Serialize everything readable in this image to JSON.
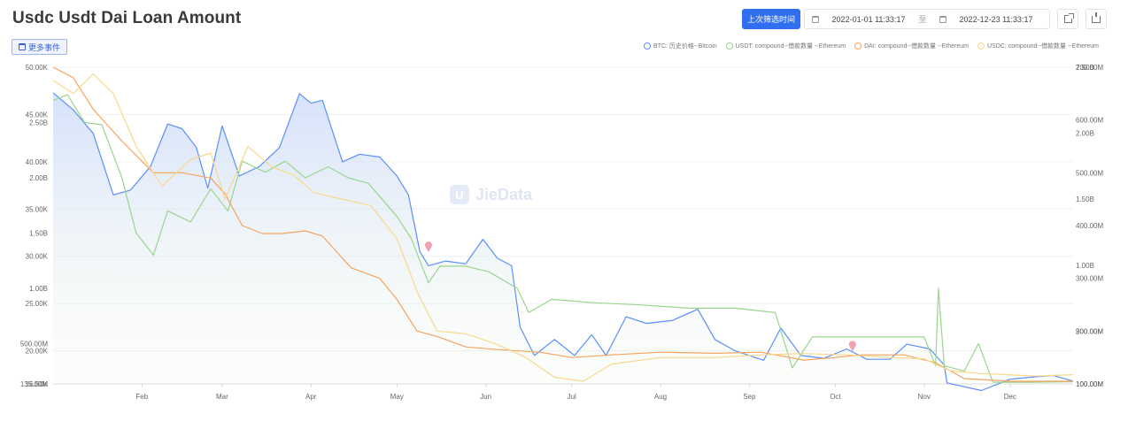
{
  "page": {
    "title": "Usdc Usdt Dai Loan Amount",
    "more_events": "更多事件",
    "filter_button": "上次筛选时间",
    "date_start": "2022-01-01 11:33:17",
    "date_sep": "至",
    "date_end": "2022-12-23 11:33:17",
    "watermark": "JieData"
  },
  "chart_data": {
    "type": "line",
    "x_range": [
      "2022-01-01",
      "2022-12-23"
    ],
    "x_ticks": [
      {
        "date": "2022-02-01",
        "label": "Feb"
      },
      {
        "date": "2022-03-01",
        "label": "Mar"
      },
      {
        "date": "2022-04-01",
        "label": "Apr"
      },
      {
        "date": "2022-05-01",
        "label": "May"
      },
      {
        "date": "2022-06-01",
        "label": "Jun"
      },
      {
        "date": "2022-07-01",
        "label": "Jul"
      },
      {
        "date": "2022-08-01",
        "label": "Aug"
      },
      {
        "date": "2022-09-01",
        "label": "Sep"
      },
      {
        "date": "2022-10-01",
        "label": "Oct"
      },
      {
        "date": "2022-11-01",
        "label": "Nov"
      },
      {
        "date": "2022-12-01",
        "label": "Dec"
      }
    ],
    "axes": [
      {
        "id": "btc",
        "side": "left",
        "min": 16500,
        "max": 50000,
        "ticks": [
          {
            "v": 50000,
            "label": "50.00K"
          },
          {
            "v": 45000,
            "label": "45.00K"
          },
          {
            "v": 40000,
            "label": "40.00K"
          },
          {
            "v": 35000,
            "label": "35.00K"
          },
          {
            "v": 30000,
            "label": "30.00K"
          },
          {
            "v": 25000,
            "label": "25.00K"
          },
          {
            "v": 20000,
            "label": "20.00K"
          },
          {
            "v": 16500,
            "label": "16.50K"
          }
        ]
      },
      {
        "id": "usdt",
        "side": "left",
        "min": 135000000,
        "max": 3000000000,
        "ticks": [
          {
            "v": 2500000000,
            "label": "2.50B"
          },
          {
            "v": 2000000000,
            "label": "2.00B"
          },
          {
            "v": 1500000000,
            "label": "1.50B"
          },
          {
            "v": 1000000000,
            "label": "1.00B"
          },
          {
            "v": 500000000,
            "label": "500.00M"
          },
          {
            "v": 135000000,
            "label": "135.00M"
          }
        ]
      },
      {
        "id": "dai",
        "side": "right",
        "min": 100000000,
        "max": 700000000,
        "ticks": [
          {
            "v": 700000000,
            "label": "700.00M"
          },
          {
            "v": 600000000,
            "label": "600.00M"
          },
          {
            "v": 500000000,
            "label": "500.00M"
          },
          {
            "v": 400000000,
            "label": "400.00M"
          },
          {
            "v": 300000000,
            "label": "300.00M"
          },
          {
            "v": 200000000,
            "label": "200.00M"
          },
          {
            "v": 100000000,
            "label": "100.00M"
          }
        ]
      },
      {
        "id": "usdc",
        "side": "right",
        "min": 100000000,
        "max": 2500000000,
        "ticks": [
          {
            "v": 2500000000,
            "label": "2.50B"
          },
          {
            "v": 2000000000,
            "label": "2.00B"
          },
          {
            "v": 1500000000,
            "label": "1.50B"
          },
          {
            "v": 1000000000,
            "label": "1.00B"
          },
          {
            "v": 500000000,
            "label": "500.00M"
          },
          {
            "v": 100000000,
            "label": "100.00M"
          }
        ]
      }
    ],
    "series": [
      {
        "name": "BTC: 历史价格--Bitcoin",
        "axis": "btc",
        "color": "#5b8ff9",
        "area": true,
        "points": [
          [
            "2022-01-01",
            47300
          ],
          [
            "2022-01-08",
            45500
          ],
          [
            "2022-01-15",
            43000
          ],
          [
            "2022-01-22",
            36500
          ],
          [
            "2022-01-28",
            37000
          ],
          [
            "2022-02-04",
            39500
          ],
          [
            "2022-02-10",
            44000
          ],
          [
            "2022-02-15",
            43500
          ],
          [
            "2022-02-20",
            41500
          ],
          [
            "2022-02-24",
            37200
          ],
          [
            "2022-03-01",
            43800
          ],
          [
            "2022-03-07",
            38500
          ],
          [
            "2022-03-14",
            39500
          ],
          [
            "2022-03-21",
            41500
          ],
          [
            "2022-03-28",
            47200
          ],
          [
            "2022-04-01",
            46200
          ],
          [
            "2022-04-05",
            46500
          ],
          [
            "2022-04-12",
            40000
          ],
          [
            "2022-04-18",
            40800
          ],
          [
            "2022-04-25",
            40500
          ],
          [
            "2022-05-01",
            38500
          ],
          [
            "2022-05-05",
            36500
          ],
          [
            "2022-05-09",
            30500
          ],
          [
            "2022-05-12",
            29000
          ],
          [
            "2022-05-18",
            29500
          ],
          [
            "2022-05-25",
            29200
          ],
          [
            "2022-05-31",
            31800
          ],
          [
            "2022-06-05",
            29800
          ],
          [
            "2022-06-10",
            29000
          ],
          [
            "2022-06-13",
            22500
          ],
          [
            "2022-06-18",
            19500
          ],
          [
            "2022-06-25",
            21200
          ],
          [
            "2022-07-02",
            19500
          ],
          [
            "2022-07-08",
            21700
          ],
          [
            "2022-07-13",
            19500
          ],
          [
            "2022-07-20",
            23600
          ],
          [
            "2022-07-27",
            22900
          ],
          [
            "2022-08-05",
            23200
          ],
          [
            "2022-08-14",
            24400
          ],
          [
            "2022-08-20",
            21200
          ],
          [
            "2022-08-27",
            20000
          ],
          [
            "2022-09-06",
            19000
          ],
          [
            "2022-09-12",
            22400
          ],
          [
            "2022-09-19",
            19500
          ],
          [
            "2022-09-27",
            19200
          ],
          [
            "2022-10-05",
            20200
          ],
          [
            "2022-10-12",
            19100
          ],
          [
            "2022-10-20",
            19100
          ],
          [
            "2022-10-26",
            20700
          ],
          [
            "2022-11-03",
            20200
          ],
          [
            "2022-11-08",
            18500
          ],
          [
            "2022-11-09",
            16600
          ],
          [
            "2022-11-21",
            15800
          ],
          [
            "2022-12-01",
            17000
          ],
          [
            "2022-12-08",
            17200
          ],
          [
            "2022-12-16",
            17400
          ],
          [
            "2022-12-23",
            16800
          ]
        ]
      },
      {
        "name": "USDT: compound--借款数量 --Ethereum",
        "axis": "usdt",
        "color": "#9ad58d",
        "points": [
          [
            "2022-01-01",
            2700000000
          ],
          [
            "2022-01-06",
            2750000000
          ],
          [
            "2022-01-12",
            2500000000
          ],
          [
            "2022-01-18",
            2480000000
          ],
          [
            "2022-01-25",
            2000000000
          ],
          [
            "2022-01-30",
            1500000000
          ],
          [
            "2022-02-05",
            1300000000
          ],
          [
            "2022-02-10",
            1700000000
          ],
          [
            "2022-02-18",
            1600000000
          ],
          [
            "2022-02-25",
            1900000000
          ],
          [
            "2022-03-03",
            1700000000
          ],
          [
            "2022-03-08",
            2150000000
          ],
          [
            "2022-03-16",
            2050000000
          ],
          [
            "2022-03-23",
            2150000000
          ],
          [
            "2022-03-30",
            2000000000
          ],
          [
            "2022-04-07",
            2100000000
          ],
          [
            "2022-04-14",
            2000000000
          ],
          [
            "2022-04-21",
            1950000000
          ],
          [
            "2022-05-01",
            1650000000
          ],
          [
            "2022-05-06",
            1450000000
          ],
          [
            "2022-05-12",
            1050000000
          ],
          [
            "2022-05-16",
            1200000000
          ],
          [
            "2022-05-25",
            1200000000
          ],
          [
            "2022-06-02",
            1150000000
          ],
          [
            "2022-06-12",
            1000000000
          ],
          [
            "2022-06-16",
            780000000
          ],
          [
            "2022-06-24",
            900000000
          ],
          [
            "2022-07-08",
            870000000
          ],
          [
            "2022-07-25",
            850000000
          ],
          [
            "2022-08-11",
            820000000
          ],
          [
            "2022-08-27",
            820000000
          ],
          [
            "2022-09-10",
            780000000
          ],
          [
            "2022-09-16",
            280000000
          ],
          [
            "2022-09-23",
            560000000
          ],
          [
            "2022-10-05",
            560000000
          ],
          [
            "2022-10-20",
            560000000
          ],
          [
            "2022-11-01",
            560000000
          ],
          [
            "2022-11-05",
            300000000
          ],
          [
            "2022-11-06",
            1000000000
          ],
          [
            "2022-11-08",
            300000000
          ],
          [
            "2022-11-15",
            250000000
          ],
          [
            "2022-11-20",
            500000000
          ],
          [
            "2022-11-25",
            150000000
          ],
          [
            "2022-12-08",
            150000000
          ],
          [
            "2022-12-23",
            155000000
          ]
        ]
      },
      {
        "name": "DAI: compound--借款数量 --Ethereum",
        "axis": "dai",
        "color": "#f5a35f",
        "points": [
          [
            "2022-01-01",
            700000000
          ],
          [
            "2022-01-08",
            680000000
          ],
          [
            "2022-01-15",
            620000000
          ],
          [
            "2022-01-25",
            560000000
          ],
          [
            "2022-02-05",
            500000000
          ],
          [
            "2022-02-15",
            500000000
          ],
          [
            "2022-02-25",
            490000000
          ],
          [
            "2022-03-02",
            460000000
          ],
          [
            "2022-03-08",
            400000000
          ],
          [
            "2022-03-15",
            385000000
          ],
          [
            "2022-03-22",
            385000000
          ],
          [
            "2022-03-30",
            390000000
          ],
          [
            "2022-04-05",
            380000000
          ],
          [
            "2022-04-15",
            320000000
          ],
          [
            "2022-04-25",
            300000000
          ],
          [
            "2022-05-01",
            260000000
          ],
          [
            "2022-05-08",
            200000000
          ],
          [
            "2022-05-15",
            190000000
          ],
          [
            "2022-05-25",
            170000000
          ],
          [
            "2022-06-05",
            165000000
          ],
          [
            "2022-06-20",
            160000000
          ],
          [
            "2022-07-01",
            150000000
          ],
          [
            "2022-07-15",
            155000000
          ],
          [
            "2022-08-01",
            160000000
          ],
          [
            "2022-08-20",
            158000000
          ],
          [
            "2022-09-05",
            160000000
          ],
          [
            "2022-09-20",
            145000000
          ],
          [
            "2022-10-01",
            150000000
          ],
          [
            "2022-10-10",
            155000000
          ],
          [
            "2022-10-25",
            155000000
          ],
          [
            "2022-11-05",
            140000000
          ],
          [
            "2022-11-15",
            110000000
          ],
          [
            "2022-12-01",
            105000000
          ],
          [
            "2022-12-23",
            105000000
          ]
        ]
      },
      {
        "name": "USDC: compound--借款数量 --Ethereum",
        "axis": "usdc",
        "color": "#f8d98b",
        "points": [
          [
            "2022-01-01",
            2400000000
          ],
          [
            "2022-01-08",
            2300000000
          ],
          [
            "2022-01-15",
            2450000000
          ],
          [
            "2022-01-22",
            2300000000
          ],
          [
            "2022-01-30",
            1900000000
          ],
          [
            "2022-02-08",
            1600000000
          ],
          [
            "2022-02-18",
            1800000000
          ],
          [
            "2022-02-25",
            1850000000
          ],
          [
            "2022-03-02",
            1500000000
          ],
          [
            "2022-03-10",
            1900000000
          ],
          [
            "2022-03-18",
            1750000000
          ],
          [
            "2022-03-26",
            1680000000
          ],
          [
            "2022-04-02",
            1550000000
          ],
          [
            "2022-04-12",
            1500000000
          ],
          [
            "2022-04-22",
            1450000000
          ],
          [
            "2022-05-01",
            1200000000
          ],
          [
            "2022-05-08",
            800000000
          ],
          [
            "2022-05-15",
            500000000
          ],
          [
            "2022-05-25",
            480000000
          ],
          [
            "2022-06-05",
            400000000
          ],
          [
            "2022-06-15",
            300000000
          ],
          [
            "2022-06-25",
            150000000
          ],
          [
            "2022-07-05",
            120000000
          ],
          [
            "2022-07-15",
            250000000
          ],
          [
            "2022-08-01",
            300000000
          ],
          [
            "2022-08-20",
            300000000
          ],
          [
            "2022-09-05",
            320000000
          ],
          [
            "2022-09-20",
            330000000
          ],
          [
            "2022-10-05",
            320000000
          ],
          [
            "2022-10-20",
            300000000
          ],
          [
            "2022-11-01",
            290000000
          ],
          [
            "2022-11-10",
            200000000
          ],
          [
            "2022-11-20",
            180000000
          ],
          [
            "2022-12-10",
            160000000
          ],
          [
            "2022-12-23",
            170000000
          ]
        ]
      }
    ],
    "markers": [
      {
        "date": "2022-05-12",
        "value": 31000,
        "axis": "btc"
      },
      {
        "date": "2022-10-07",
        "value": 20500,
        "axis": "btc"
      }
    ],
    "legend_position": "top-right",
    "grid": true
  }
}
